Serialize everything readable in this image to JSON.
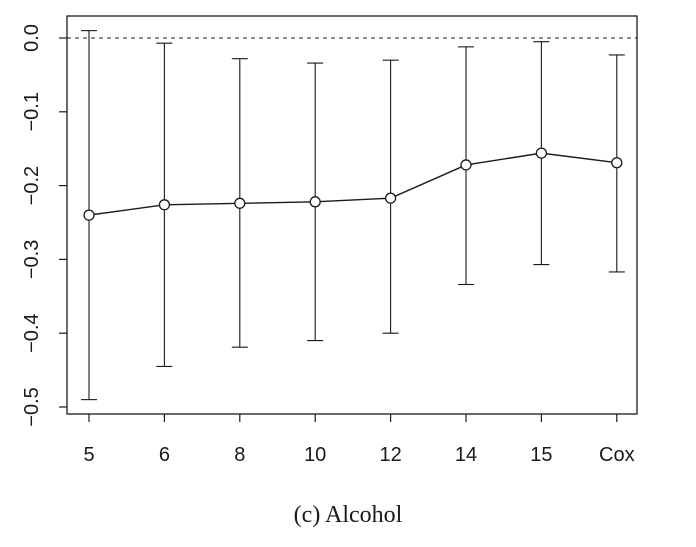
{
  "chart_data": {
    "type": "line",
    "categories": [
      "5",
      "6",
      "8",
      "10",
      "12",
      "14",
      "15",
      "Cox"
    ],
    "series": [
      {
        "values": [
          -0.24,
          -0.226,
          -0.224,
          -0.222,
          -0.217,
          -0.172,
          -0.156,
          -0.169
        ],
        "lower": [
          -0.49,
          -0.445,
          -0.419,
          -0.41,
          -0.4,
          -0.334,
          -0.307,
          -0.317
        ],
        "upper": [
          0.01,
          -0.007,
          -0.028,
          -0.034,
          -0.03,
          -0.012,
          -0.005,
          -0.023
        ]
      }
    ],
    "reference_line": 0.0,
    "yticks": [
      0.0,
      -0.1,
      -0.2,
      -0.3,
      -0.4,
      -0.5
    ],
    "ytick_labels": [
      "0.0",
      "−0.1",
      "−0.2",
      "−0.3",
      "−0.4",
      "−0.5"
    ],
    "ylim": [
      -0.5,
      0.0
    ],
    "title": "",
    "xlabel": "",
    "ylabel": "",
    "grid": false,
    "caption": "(c)  Alcohol",
    "colors": {
      "line": "#1a1a1a",
      "background": "#ffffff"
    }
  }
}
